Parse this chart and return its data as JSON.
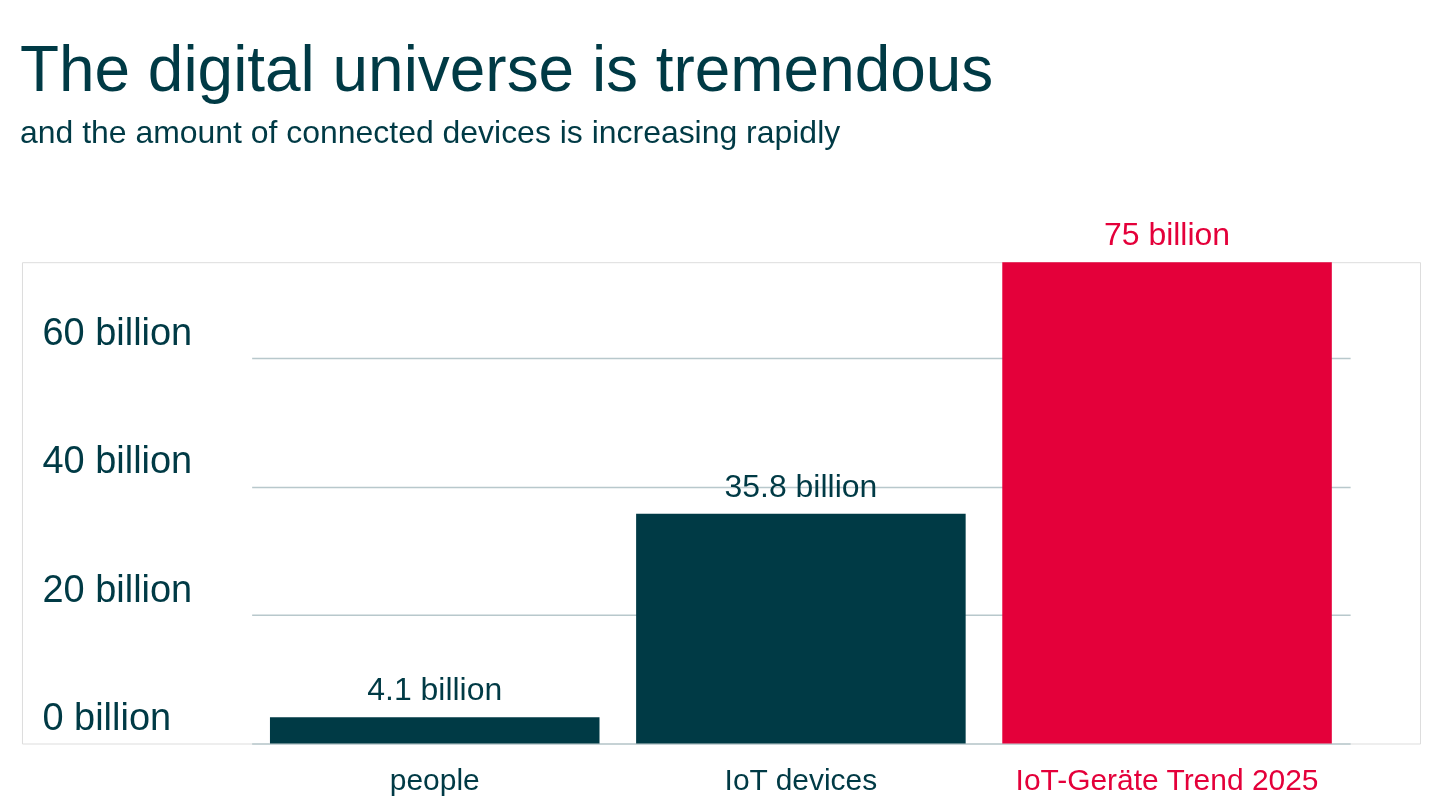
{
  "chart_data": {
    "type": "bar",
    "title": "The digital universe is tremendous",
    "subtitle": "and the amount of connected devices is increasing rapidly",
    "categories": [
      "people",
      "IoT devices",
      "IoT-Geräte Trend 2025"
    ],
    "values": [
      4.1,
      35.8,
      75
    ],
    "colors": [
      "#003a45",
      "#003a45",
      "#e4003a"
    ],
    "value_labels": [
      "4.1 billion",
      "35.8 billion",
      "75 billion"
    ],
    "ylim": [
      0,
      75
    ],
    "yticks": [
      {
        "value": 0,
        "label": "0 billion"
      },
      {
        "value": 20,
        "label": "20 billion"
      },
      {
        "value": 40,
        "label": "40 billion"
      },
      {
        "value": 60,
        "label": "60 billion"
      }
    ],
    "grid": "y",
    "legend": false
  }
}
